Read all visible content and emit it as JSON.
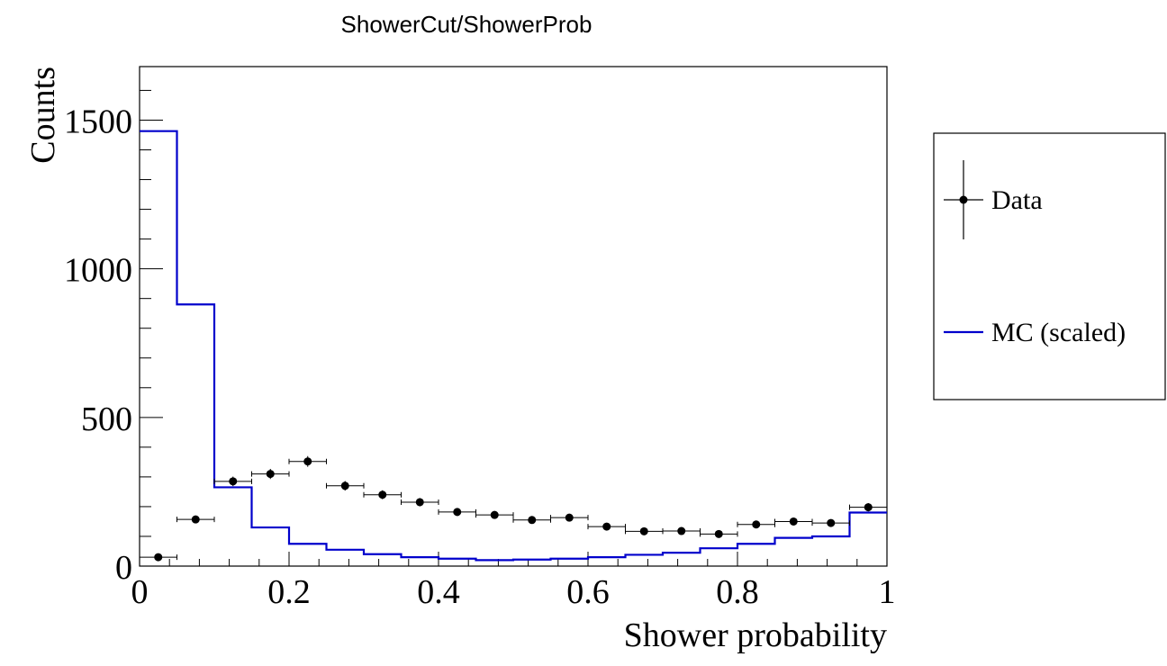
{
  "chart_data": {
    "type": "histogram",
    "title": "ShowerCut/ShowerProb",
    "xlabel": "Shower probability",
    "ylabel": "Counts",
    "xlim": [
      0,
      1
    ],
    "ylim": [
      0,
      1680
    ],
    "x_ticks": [
      0,
      0.2,
      0.4,
      0.6,
      0.8,
      1
    ],
    "x_tick_labels": [
      "0",
      "0.2",
      "0.4",
      "0.6",
      "0.8",
      "1"
    ],
    "y_ticks": [
      0,
      500,
      1000,
      1500
    ],
    "y_tick_labels": [
      "0",
      "500",
      "1000",
      "1500"
    ],
    "bin_edges": [
      0,
      0.05,
      0.1,
      0.15,
      0.2,
      0.25,
      0.3,
      0.35,
      0.4,
      0.45,
      0.5,
      0.55,
      0.6,
      0.65,
      0.7,
      0.75,
      0.8,
      0.85,
      0.9,
      0.95,
      1.0
    ],
    "legend_position": "right",
    "series": [
      {
        "name": "Data",
        "kind": "points-with-errors",
        "color": "#000000",
        "x": [
          0.025,
          0.075,
          0.125,
          0.175,
          0.225,
          0.275,
          0.325,
          0.375,
          0.425,
          0.475,
          0.525,
          0.575,
          0.625,
          0.675,
          0.725,
          0.775,
          0.825,
          0.875,
          0.925,
          0.975
        ],
        "values": [
          30,
          157,
          285,
          310,
          352,
          270,
          240,
          215,
          182,
          172,
          155,
          163,
          133,
          117,
          118,
          108,
          140,
          150,
          145,
          198
        ],
        "errors": [
          6,
          12,
          16,
          17,
          18,
          16,
          15,
          14,
          13,
          13,
          12,
          12,
          11,
          10,
          10,
          10,
          11,
          12,
          12,
          14
        ]
      },
      {
        "name": "MC (scaled)",
        "kind": "step",
        "color": "#0000cc",
        "values": [
          1463,
          880,
          265,
          130,
          75,
          55,
          40,
          30,
          25,
          20,
          22,
          25,
          30,
          38,
          45,
          60,
          75,
          95,
          100,
          180
        ]
      }
    ]
  }
}
